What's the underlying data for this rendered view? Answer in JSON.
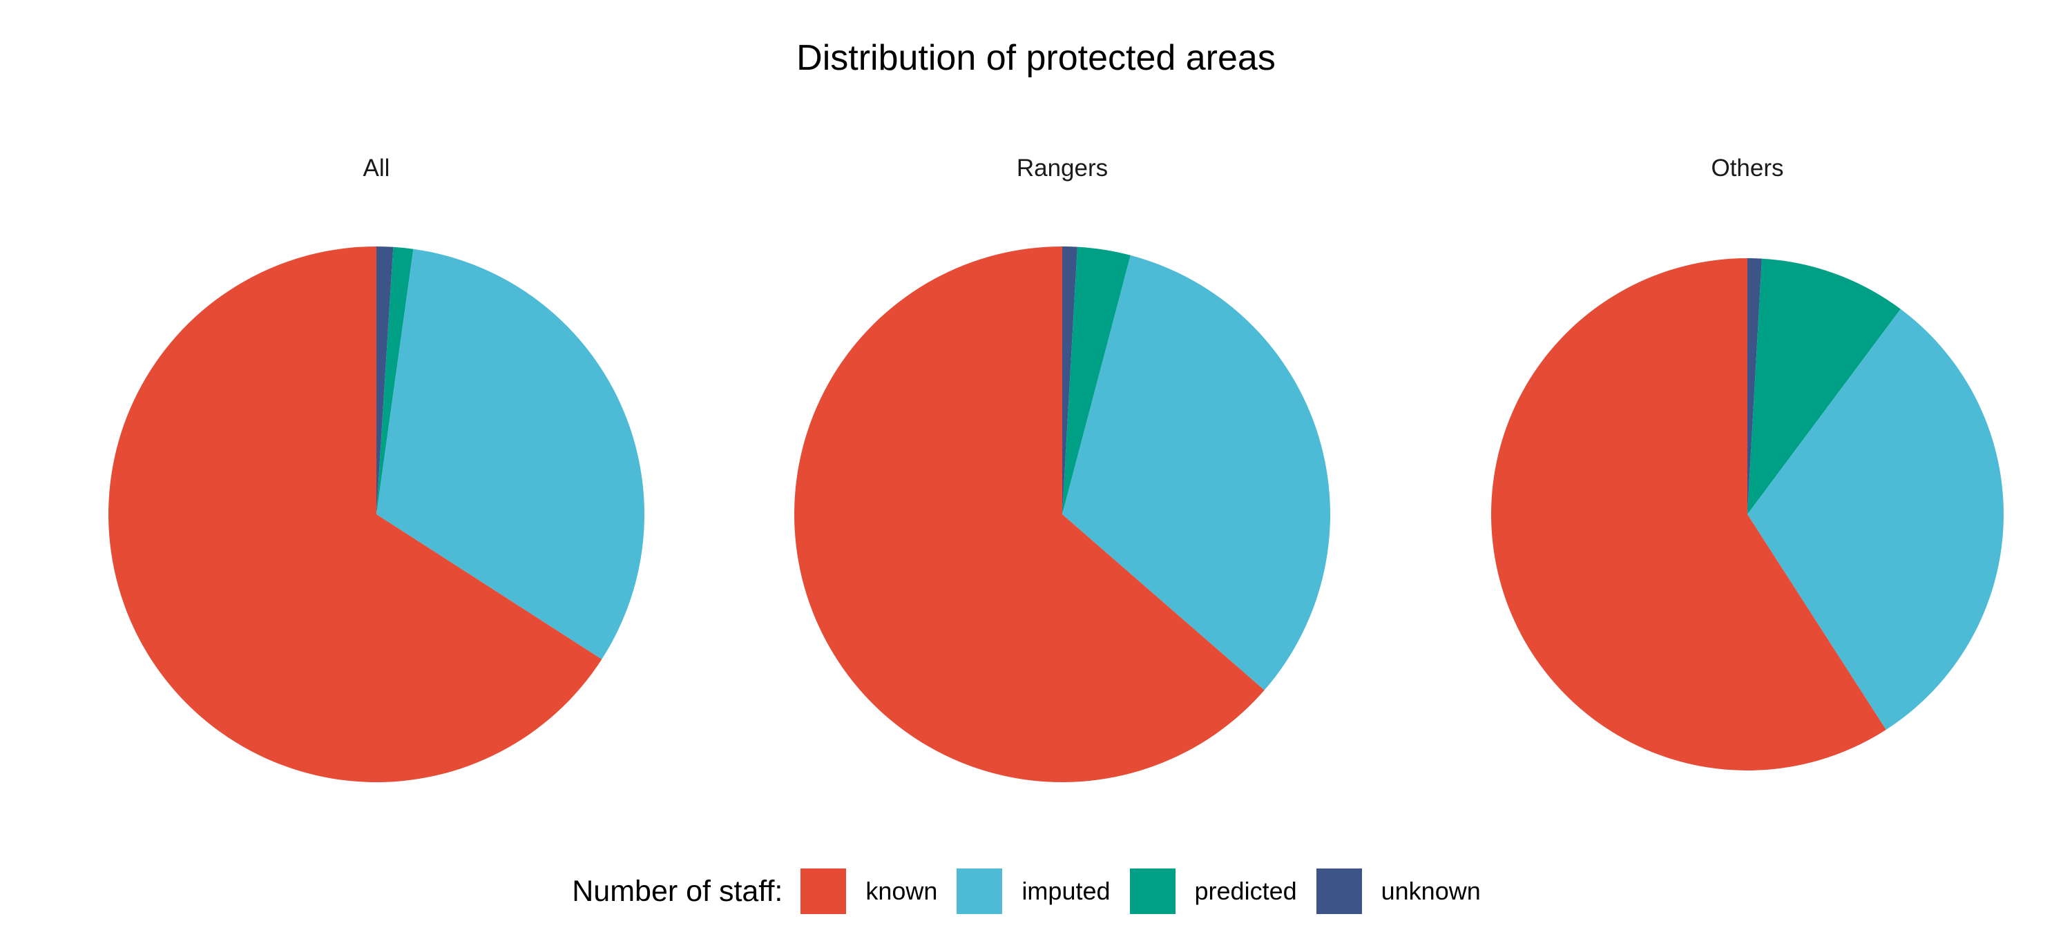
{
  "chart_data": {
    "type": "pie",
    "title": "Distribution of protected areas",
    "legend": {
      "title": "Number of staff:",
      "position": "bottom",
      "entries": [
        {
          "label": "known",
          "color": "#E64B35"
        },
        {
          "label": "imputed",
          "color": "#4DBBD5"
        },
        {
          "label": "predicted",
          "color": "#00A087"
        },
        {
          "label": "unknown",
          "color": "#3C5488"
        }
      ]
    },
    "categories": [
      "unknown",
      "predicted",
      "imputed",
      "known"
    ],
    "colors": {
      "known": "#E64B35",
      "imputed": "#4DBBD5",
      "predicted": "#00A087",
      "unknown": "#3C5488"
    },
    "panels": [
      {
        "label": "All",
        "values": {
          "unknown": 1.0,
          "predicted": 1.2,
          "imputed": 31.9,
          "known": 65.9
        }
      },
      {
        "label": "Rangers",
        "values": {
          "unknown": 0.9,
          "predicted": 3.2,
          "imputed": 32.3,
          "known": 63.6
        }
      },
      {
        "label": "Others",
        "values": {
          "unknown": 0.9,
          "predicted": 9.3,
          "imputed": 30.7,
          "known": 59.1
        }
      }
    ]
  }
}
